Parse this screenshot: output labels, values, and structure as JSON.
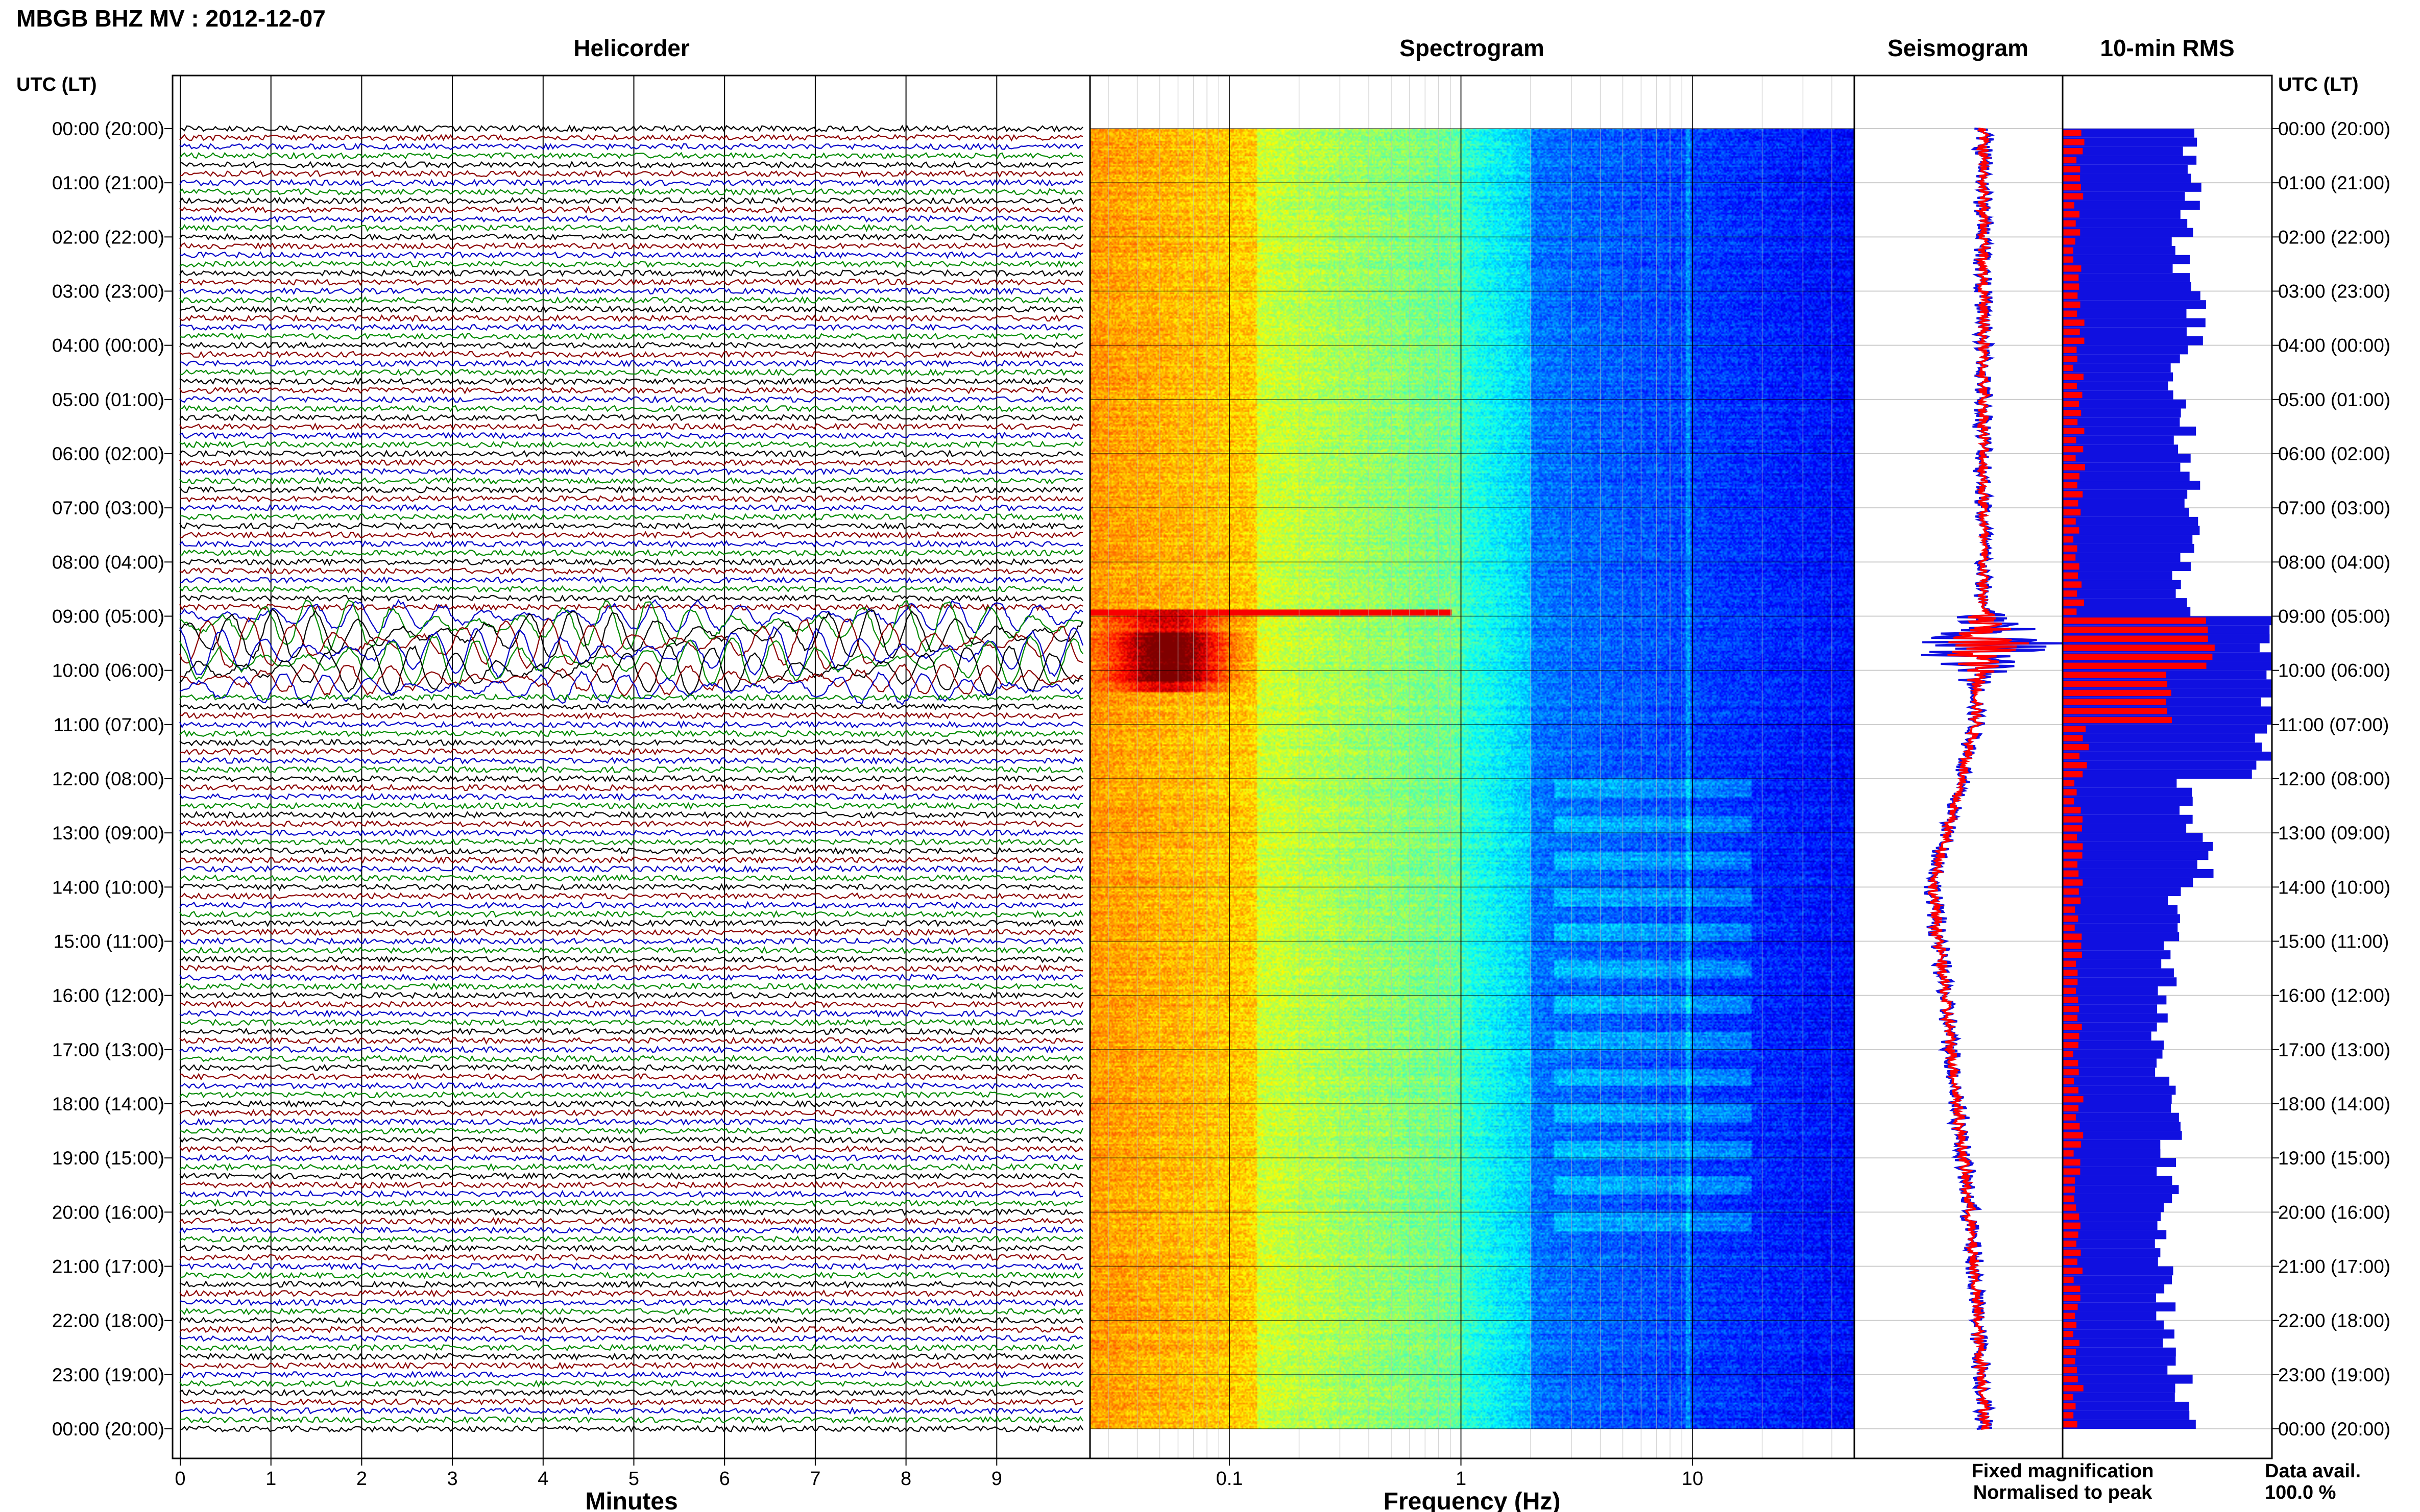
{
  "header": {
    "title": "MBGB BHZ MV : 2012-12-07"
  },
  "panels": {
    "helicorder": "Helicorder",
    "spectrogram": "Spectrogram",
    "seismogram": "Seismogram",
    "rms": "10-min RMS"
  },
  "axis_left_header": "UTC (LT)",
  "axis_right_header": "UTC (LT)",
  "time_labels": [
    "00:00 (20:00)",
    "01:00 (21:00)",
    "02:00 (22:00)",
    "03:00 (23:00)",
    "04:00 (00:00)",
    "05:00 (01:00)",
    "06:00 (02:00)",
    "07:00 (03:00)",
    "08:00 (04:00)",
    "09:00 (05:00)",
    "10:00 (06:00)",
    "11:00 (07:00)",
    "12:00 (08:00)",
    "13:00 (09:00)",
    "14:00 (10:00)",
    "15:00 (11:00)",
    "16:00 (12:00)",
    "17:00 (13:00)",
    "18:00 (14:00)",
    "19:00 (15:00)",
    "20:00 (16:00)",
    "21:00 (17:00)",
    "22:00 (18:00)",
    "23:00 (19:00)",
    "00:00 (20:00)"
  ],
  "x_axis": {
    "minutes_label": "Minutes",
    "minutes_ticks": [
      "0",
      "1",
      "2",
      "3",
      "4",
      "5",
      "6",
      "7",
      "8",
      "9"
    ],
    "frequency_label": "Frequency (Hz)",
    "frequency_ticks": [
      "0.1",
      "1",
      "10"
    ]
  },
  "legend": {
    "fixed": "Fixed magnification",
    "normalised": "Normalised to peak",
    "data_avail_label": "Data avail.",
    "data_avail_value": "100.0 %"
  },
  "colors": {
    "blue": "#1010e0",
    "red": "#ff0000",
    "trace_colors": [
      "#000000",
      "#8b0000",
      "#0000c8",
      "#008a00"
    ]
  },
  "chart_data": {
    "type": "heatmap",
    "title": "MBGB BHZ MV : 2012-12-07",
    "helicorder": {
      "minutes_per_line": 10,
      "x_range_minutes": [
        0,
        10
      ],
      "event_window_utc_hours": [
        8.8,
        10.4
      ]
    },
    "spectrogram": {
      "xscale": "log",
      "x_range_hz": [
        0.025,
        50
      ],
      "peak_band_hz": [
        0.04,
        0.09
      ],
      "event_window_utc_hours": [
        8.8,
        10.4
      ]
    },
    "rms_10min": {
      "x_hours": [
        0,
        1,
        2,
        3,
        4,
        5,
        6,
        7,
        8,
        9,
        10,
        11,
        12,
        13,
        14,
        15,
        16,
        17,
        18,
        19,
        20,
        21,
        22,
        23
      ],
      "fixed_relative": [
        0.6,
        0.62,
        0.58,
        0.63,
        0.55,
        0.58,
        0.62,
        0.6,
        0.58,
        1.0,
        1.0,
        0.95,
        0.6,
        0.68,
        0.52,
        0.5,
        0.48,
        0.5,
        0.52,
        0.5,
        0.48,
        0.5,
        0.52,
        0.58
      ],
      "normalised_relative": [
        0.08,
        0.07,
        0.07,
        0.08,
        0.07,
        0.08,
        0.08,
        0.07,
        0.08,
        0.7,
        0.5,
        0.1,
        0.07,
        0.08,
        0.07,
        0.07,
        0.07,
        0.07,
        0.07,
        0.07,
        0.07,
        0.07,
        0.07,
        0.07
      ]
    }
  }
}
